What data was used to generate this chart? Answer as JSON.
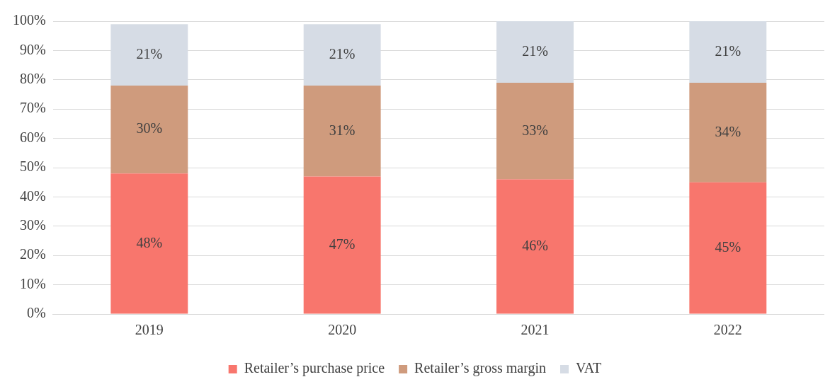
{
  "chart_data": {
    "type": "bar",
    "stacked": true,
    "categories": [
      "2019",
      "2020",
      "2021",
      "2022"
    ],
    "series": [
      {
        "name": "Retailer’s purchase price",
        "color": "#f8766d",
        "values": [
          48,
          47,
          46,
          45
        ],
        "value_labels": [
          "48%",
          "47%",
          "46%",
          "45%"
        ]
      },
      {
        "name": "Retailer’s gross margin",
        "color": "#cf9b7d",
        "values": [
          30,
          31,
          33,
          34
        ],
        "value_labels": [
          "30%",
          "31%",
          "33%",
          "34%"
        ]
      },
      {
        "name": "VAT",
        "color": "#d6dce5",
        "values": [
          21,
          21,
          21,
          21
        ],
        "value_labels": [
          "21%",
          "21%",
          "21%",
          "21%"
        ]
      }
    ],
    "ylim": [
      0,
      100
    ],
    "yticks": [
      {
        "value": 0,
        "label": "0%"
      },
      {
        "value": 10,
        "label": "10%"
      },
      {
        "value": 20,
        "label": "20%"
      },
      {
        "value": 30,
        "label": "30%"
      },
      {
        "value": 40,
        "label": "40%"
      },
      {
        "value": 50,
        "label": "50%"
      },
      {
        "value": 60,
        "label": "60%"
      },
      {
        "value": 70,
        "label": "70%"
      },
      {
        "value": 80,
        "label": "80%"
      },
      {
        "value": 90,
        "label": "90%"
      },
      {
        "value": 100,
        "label": "100%"
      }
    ],
    "grid": "y",
    "legend": "bottom"
  }
}
